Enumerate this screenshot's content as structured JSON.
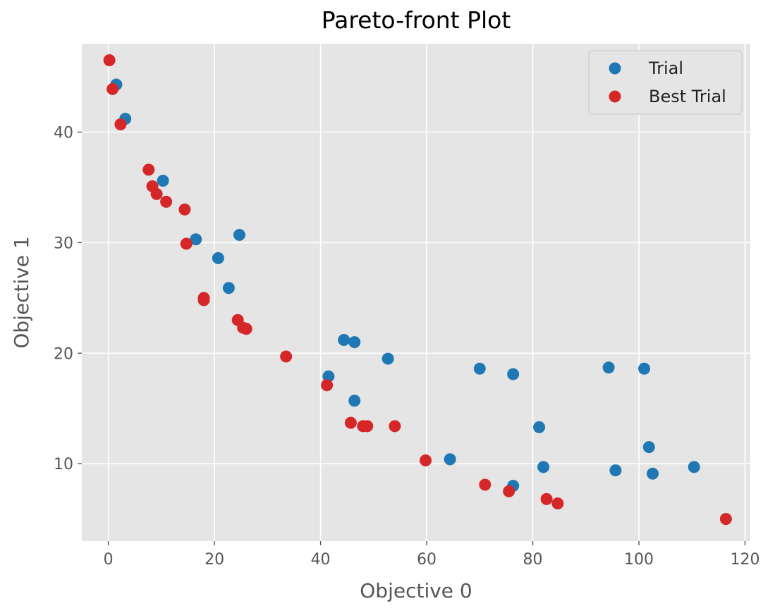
{
  "chart_data": {
    "type": "scatter",
    "title": "Pareto-front Plot",
    "xlabel": "Objective 0",
    "ylabel": "Objective 1",
    "xlim": [
      -5,
      121
    ],
    "ylim": [
      3,
      48
    ],
    "xticks": [
      0,
      20,
      40,
      60,
      80,
      100,
      120
    ],
    "yticks": [
      10,
      20,
      30,
      40
    ],
    "grid": true,
    "legend_position": "top-right",
    "series": [
      {
        "name": "Trial",
        "color": "#1f77b4",
        "points": [
          [
            1.5,
            44.3
          ],
          [
            3.2,
            41.2
          ],
          [
            10.3,
            35.6
          ],
          [
            16.5,
            30.3
          ],
          [
            20.7,
            28.6
          ],
          [
            24.7,
            30.7
          ],
          [
            22.7,
            25.9
          ],
          [
            44.4,
            21.2
          ],
          [
            46.4,
            21.0
          ],
          [
            52.7,
            19.5
          ],
          [
            41.5,
            17.9
          ],
          [
            46.4,
            15.7
          ],
          [
            64.4,
            10.4
          ],
          [
            70.0,
            18.6
          ],
          [
            76.3,
            18.1
          ],
          [
            76.3,
            8.0
          ],
          [
            81.2,
            13.3
          ],
          [
            82.0,
            9.7
          ],
          [
            94.3,
            18.7
          ],
          [
            101.0,
            18.6
          ],
          [
            95.6,
            9.4
          ],
          [
            101.9,
            11.5
          ],
          [
            102.6,
            9.1
          ],
          [
            110.4,
            9.7
          ]
        ]
      },
      {
        "name": "Best Trial",
        "color": "#d62728",
        "points": [
          [
            0.2,
            46.5
          ],
          [
            0.8,
            43.9
          ],
          [
            2.3,
            40.7
          ],
          [
            7.6,
            36.6
          ],
          [
            8.3,
            35.1
          ],
          [
            9.1,
            34.4
          ],
          [
            10.9,
            33.7
          ],
          [
            14.4,
            33.0
          ],
          [
            14.7,
            29.9
          ],
          [
            18.0,
            25.0
          ],
          [
            18.0,
            24.8
          ],
          [
            24.4,
            23.0
          ],
          [
            25.4,
            22.3
          ],
          [
            26.0,
            22.2
          ],
          [
            33.5,
            19.7
          ],
          [
            41.2,
            17.1
          ],
          [
            45.7,
            13.7
          ],
          [
            48.0,
            13.4
          ],
          [
            48.8,
            13.4
          ],
          [
            54.0,
            13.4
          ],
          [
            59.8,
            10.3
          ],
          [
            71.0,
            8.1
          ],
          [
            75.5,
            7.5
          ],
          [
            82.6,
            6.8
          ],
          [
            84.7,
            6.4
          ],
          [
            116.4,
            5.0
          ]
        ]
      }
    ]
  }
}
